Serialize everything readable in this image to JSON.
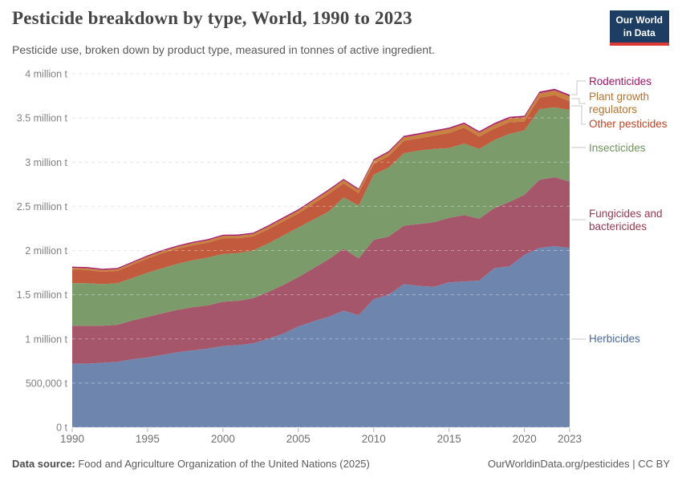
{
  "header": {
    "title": "Pesticide breakdown by type, World, 1990 to 2023",
    "subtitle": "Pesticide use, broken down by product type, measured in tonnes of active ingredient.",
    "logo_line1": "Our World",
    "logo_line2": "in Data",
    "logo_bg": "#1d3d63",
    "logo_bar": "#dc3936"
  },
  "chart_data": {
    "type": "area",
    "stacked": true,
    "title": "Pesticide breakdown by type, World, 1990 to 2023",
    "xlabel": "",
    "ylabel": "tonnes of active ingredient",
    "unit_millions_tonnes": true,
    "ylim": [
      0,
      4
    ],
    "grid": "horizontal-dashed",
    "legend_position": "right",
    "x": [
      1990,
      1991,
      1992,
      1993,
      1994,
      1995,
      1996,
      1997,
      1998,
      1999,
      2000,
      2001,
      2002,
      2003,
      2004,
      2005,
      2006,
      2007,
      2008,
      2009,
      2010,
      2011,
      2012,
      2013,
      2014,
      2015,
      2016,
      2017,
      2018,
      2019,
      2020,
      2021,
      2022,
      2023
    ],
    "x_ticks": [
      1990,
      1995,
      2000,
      2005,
      2010,
      2015,
      2020,
      2023
    ],
    "y_ticks": [
      {
        "v": 0,
        "label": "0 t"
      },
      {
        "v": 0.5,
        "label": "500,000 t"
      },
      {
        "v": 1,
        "label": "1 million t"
      },
      {
        "v": 1.5,
        "label": "1.5 million t"
      },
      {
        "v": 2,
        "label": "2 million t"
      },
      {
        "v": 2.5,
        "label": "2.5 million t"
      },
      {
        "v": 3,
        "label": "3 million t"
      },
      {
        "v": 3.5,
        "label": "3.5 million t"
      },
      {
        "v": 4,
        "label": "4 million t"
      }
    ],
    "series": [
      {
        "name": "Herbicides",
        "slug": "herbicides",
        "color": "#6e86ae",
        "label_color": "#49699b",
        "values": [
          0.72,
          0.72,
          0.73,
          0.74,
          0.77,
          0.79,
          0.82,
          0.85,
          0.87,
          0.89,
          0.92,
          0.93,
          0.95,
          1.0,
          1.06,
          1.14,
          1.2,
          1.25,
          1.32,
          1.27,
          1.45,
          1.5,
          1.62,
          1.6,
          1.59,
          1.64,
          1.65,
          1.66,
          1.8,
          1.82,
          1.95,
          2.03,
          2.05,
          2.03
        ]
      },
      {
        "name": "Fungicides and bactericides",
        "slug": "fungicides-and-bactericides",
        "color": "#a5566a",
        "label_color": "#96394f",
        "values": [
          0.43,
          0.43,
          0.42,
          0.42,
          0.44,
          0.46,
          0.47,
          0.48,
          0.49,
          0.49,
          0.5,
          0.5,
          0.51,
          0.53,
          0.55,
          0.56,
          0.6,
          0.65,
          0.7,
          0.64,
          0.67,
          0.66,
          0.66,
          0.7,
          0.73,
          0.73,
          0.75,
          0.7,
          0.68,
          0.73,
          0.68,
          0.77,
          0.78,
          0.75
        ]
      },
      {
        "name": "Insecticides",
        "slug": "insecticides",
        "color": "#7b9b6b",
        "label_color": "#6f9459",
        "values": [
          0.48,
          0.48,
          0.47,
          0.47,
          0.48,
          0.5,
          0.51,
          0.52,
          0.53,
          0.54,
          0.54,
          0.54,
          0.54,
          0.55,
          0.56,
          0.56,
          0.55,
          0.54,
          0.58,
          0.6,
          0.74,
          0.78,
          0.82,
          0.83,
          0.83,
          0.79,
          0.81,
          0.79,
          0.77,
          0.77,
          0.73,
          0.8,
          0.79,
          0.81
        ]
      },
      {
        "name": "Other pesticides",
        "slug": "other-pesticides",
        "color": "#c25b3d",
        "label_color": "#bd4424",
        "values": [
          0.155,
          0.15,
          0.14,
          0.14,
          0.15,
          0.16,
          0.17,
          0.17,
          0.17,
          0.17,
          0.18,
          0.17,
          0.16,
          0.16,
          0.16,
          0.16,
          0.18,
          0.2,
          0.16,
          0.14,
          0.12,
          0.13,
          0.14,
          0.14,
          0.15,
          0.17,
          0.18,
          0.14,
          0.13,
          0.13,
          0.1,
          0.13,
          0.14,
          0.1
        ]
      },
      {
        "name": "Plant growth regulators",
        "slug": "plant-growth-regulators",
        "color": "#c8823f",
        "label_color": "#b9712c",
        "values": [
          0.02,
          0.02,
          0.02,
          0.02,
          0.021,
          0.022,
          0.023,
          0.024,
          0.025,
          0.025,
          0.026,
          0.027,
          0.028,
          0.03,
          0.031,
          0.032,
          0.034,
          0.035,
          0.036,
          0.036,
          0.038,
          0.04,
          0.041,
          0.042,
          0.044,
          0.045,
          0.042,
          0.043,
          0.045,
          0.046,
          0.048,
          0.05,
          0.052,
          0.055
        ]
      },
      {
        "name": "Rodenticides",
        "slug": "rodenticides",
        "color": "#a8216e",
        "label_color": "#a2136b",
        "values": [
          0.013,
          0.013,
          0.013,
          0.013,
          0.013,
          0.014,
          0.014,
          0.014,
          0.014,
          0.014,
          0.014,
          0.014,
          0.014,
          0.015,
          0.015,
          0.015,
          0.015,
          0.015,
          0.015,
          0.015,
          0.016,
          0.016,
          0.016,
          0.016,
          0.016,
          0.016,
          0.016,
          0.017,
          0.017,
          0.017,
          0.017,
          0.018,
          0.018,
          0.018
        ]
      }
    ]
  },
  "footer": {
    "source_label": "Data source:",
    "source_text": " Food and Agriculture Organization of the United Nations (2025)",
    "credit": "OurWorldinData.org/pesticides | CC BY"
  }
}
